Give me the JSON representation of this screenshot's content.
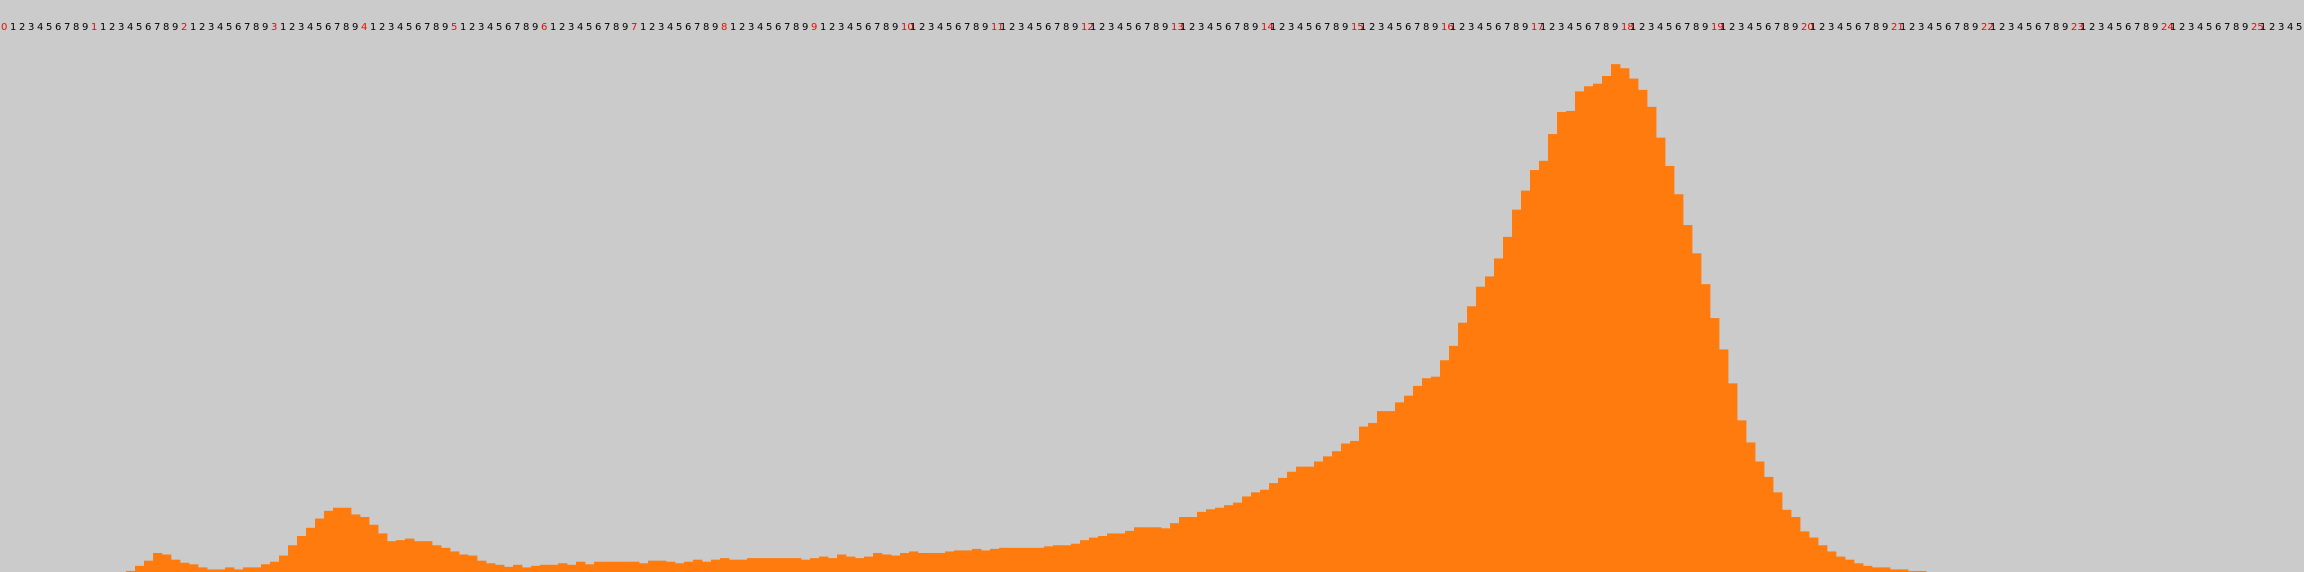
{
  "colors": {
    "background": "#cbcbcb",
    "bar": "#ff7b0d",
    "digit": "#000000",
    "decade_digit": "#ff0000"
  },
  "chart_data": {
    "type": "bar",
    "title": "",
    "xlabel": "",
    "ylabel": "",
    "grid": false,
    "legend": "none",
    "x_ticks": {
      "start": 0,
      "end": 255,
      "step": 1,
      "label": "last digit of index; decade number in red at every multiple of 10"
    },
    "ylim": [
      0,
      1000
    ],
    "categories_range": [
      0,
      255
    ],
    "values": [
      0,
      0,
      0,
      0,
      0,
      0,
      0,
      0,
      0,
      0,
      0,
      0,
      0,
      0,
      2,
      12,
      22,
      37,
      34,
      24,
      18,
      15,
      9,
      5,
      5,
      9,
      5,
      9,
      9,
      15,
      20,
      32,
      52,
      70,
      86,
      104,
      119,
      125,
      125,
      112,
      107,
      92,
      75,
      60,
      62,
      65,
      60,
      60,
      52,
      47,
      40,
      34,
      32,
      22,
      17,
      14,
      10,
      14,
      9,
      12,
      14,
      14,
      17,
      14,
      20,
      15,
      20,
      20,
      20,
      20,
      20,
      17,
      22,
      22,
      20,
      17,
      20,
      24,
      20,
      24,
      27,
      24,
      24,
      27,
      27,
      27,
      27,
      27,
      27,
      24,
      27,
      30,
      27,
      34,
      30,
      27,
      30,
      37,
      34,
      32,
      37,
      40,
      37,
      37,
      37,
      40,
      42,
      42,
      45,
      42,
      45,
      47,
      47,
      47,
      47,
      47,
      50,
      52,
      52,
      55,
      62,
      67,
      70,
      75,
      75,
      80,
      87,
      87,
      87,
      85,
      95,
      107,
      107,
      117,
      122,
      125,
      130,
      135,
      147,
      155,
      160,
      173,
      183,
      195,
      205,
      205,
      215,
      225,
      235,
      250,
      255,
      283,
      290,
      313,
      313,
      330,
      343,
      362,
      377,
      380,
      412,
      440,
      485,
      517,
      555,
      575,
      610,
      652,
      705,
      742,
      782,
      800,
      852,
      895,
      897,
      935,
      945,
      950,
      965,
      988,
      980,
      960,
      938,
      905,
      845,
      790,
      735,
      675,
      620,
      560,
      494,
      433,
      367,
      295,
      252,
      215,
      185,
      155,
      121,
      107,
      79,
      67,
      52,
      40,
      30,
      24,
      17,
      12,
      9,
      9,
      5,
      5,
      2,
      2,
      0,
      0,
      0,
      0,
      0,
      0,
      0,
      0,
      0,
      0,
      0,
      0,
      0,
      0,
      0,
      0,
      0,
      0,
      0,
      0,
      0,
      0,
      0,
      0,
      0,
      0,
      0,
      0,
      0,
      0,
      0,
      0,
      0,
      0,
      0,
      0,
      0,
      0,
      0,
      0,
      0,
      0
    ]
  }
}
